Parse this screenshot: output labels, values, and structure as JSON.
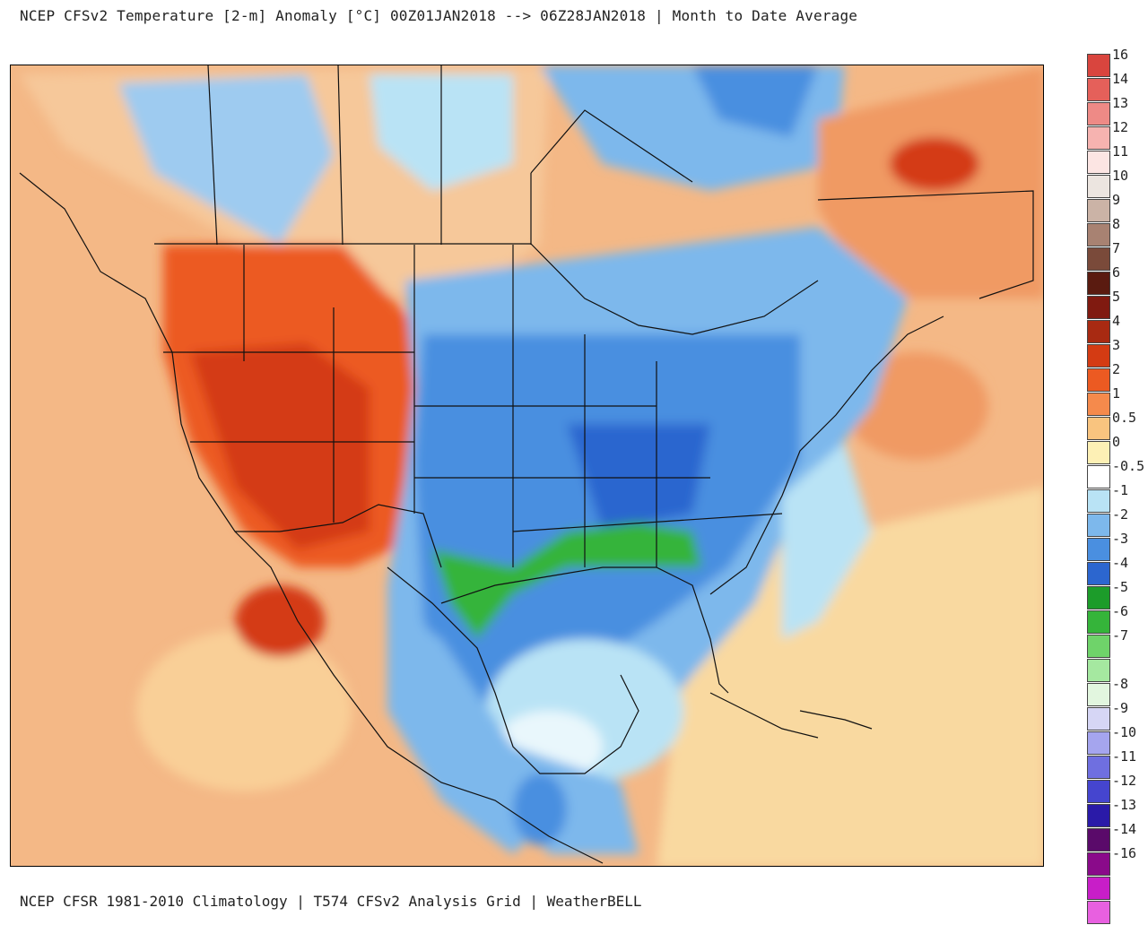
{
  "header": {
    "title": "NCEP CFSv2 Temperature [2-m] Anomaly  [°C] 00Z01JAN2018 --> 06Z28JAN2018 | Month to Date Average"
  },
  "footer": {
    "credit": "NCEP CFSR 1981-2010 Climatology | T574 CFSv2 Analysis Grid | WeatherBELL"
  },
  "legend": {
    "items": [
      {
        "label": "16",
        "color": "#d9453e"
      },
      {
        "label": "14",
        "color": "#e5605a"
      },
      {
        "label": "13",
        "color": "#ee8a86"
      },
      {
        "label": "12",
        "color": "#f6b3b0"
      },
      {
        "label": "11",
        "color": "#fce5e3"
      },
      {
        "label": "10",
        "color": "#ece5e0"
      },
      {
        "label": "9",
        "color": "#cbb3a6"
      },
      {
        "label": "8",
        "color": "#a88272"
      },
      {
        "label": "7",
        "color": "#7a4a3a"
      },
      {
        "label": "6",
        "color": "#5a1b10"
      },
      {
        "label": "5",
        "color": "#801a10"
      },
      {
        "label": "4",
        "color": "#a82a12"
      },
      {
        "label": "3",
        "color": "#d43b13"
      },
      {
        "label": "2",
        "color": "#ec5a22"
      },
      {
        "label": "1",
        "color": "#f58a4c"
      },
      {
        "label": "0.5",
        "color": "#f9c47f"
      },
      {
        "label": "0",
        "color": "#fdf0b5"
      },
      {
        "label": "-0.5",
        "color": "#ffffff"
      },
      {
        "label": "-1",
        "color": "#b9e3f5"
      },
      {
        "label": "-2",
        "color": "#7db8ec"
      },
      {
        "label": "-3",
        "color": "#4a8fe0"
      },
      {
        "label": "-4",
        "color": "#2c66cf"
      },
      {
        "label": "-5",
        "color": "#1c9c2a"
      },
      {
        "label": "-6",
        "color": "#35b43a"
      },
      {
        "label": "-7",
        "color": "#6fd36a"
      },
      {
        "label": "",
        "color": "#a5e8a0"
      },
      {
        "label": "-8",
        "color": "#e2f6df"
      },
      {
        "label": "-9",
        "color": "#d6d6f5"
      },
      {
        "label": "-10",
        "color": "#a5a5ee"
      },
      {
        "label": "-11",
        "color": "#6f6fe0"
      },
      {
        "label": "-12",
        "color": "#4545cf"
      },
      {
        "label": "-13",
        "color": "#2a1aa8"
      },
      {
        "label": "-14",
        "color": "#5a0a6a"
      },
      {
        "label": "-16",
        "color": "#8a0a8a"
      },
      {
        "label": "",
        "color": "#c81ec8"
      },
      {
        "label": "",
        "color": "#e860e0"
      }
    ]
  }
}
